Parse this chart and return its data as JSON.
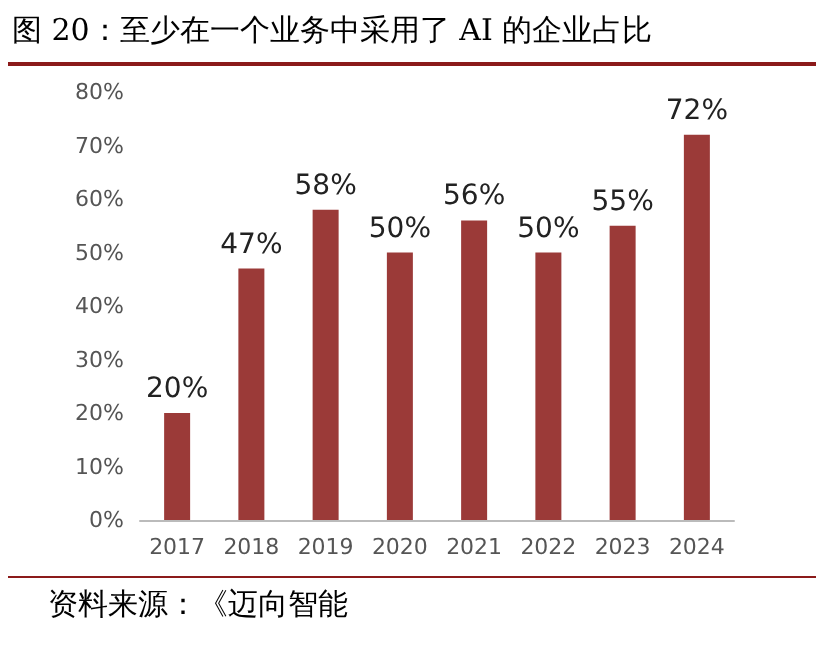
{
  "chart_data": {
    "type": "bar",
    "title": "图 20：至少在一个业务中采用了 AI 的企业占比",
    "categories": [
      "2017",
      "2018",
      "2019",
      "2020",
      "2021",
      "2022",
      "2023",
      "2024"
    ],
    "values": [
      20,
      47,
      58,
      50,
      56,
      50,
      55,
      72
    ],
    "value_labels": [
      "20%",
      "47%",
      "58%",
      "50%",
      "56%",
      "50%",
      "55%",
      "72%"
    ],
    "color": "#9b3a38",
    "ylim": [
      0,
      80
    ],
    "yticks": [
      {
        "value": 0,
        "label": "0%"
      },
      {
        "value": 10,
        "label": "10%"
      },
      {
        "value": 20,
        "label": "20%"
      },
      {
        "value": 30,
        "label": "30%"
      },
      {
        "value": 40,
        "label": "40%"
      },
      {
        "value": 50,
        "label": "50%"
      },
      {
        "value": 60,
        "label": "60%"
      },
      {
        "value": 70,
        "label": "70%"
      },
      {
        "value": 80,
        "label": "80%"
      }
    ],
    "grid": false,
    "annotations": [
      "资料来源：《迈向智能"
    ]
  }
}
